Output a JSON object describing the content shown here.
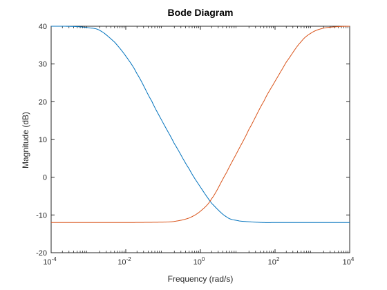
{
  "chart_data": {
    "type": "line",
    "title": "Bode Diagram",
    "xlabel": "Frequency (rad/s)",
    "ylabel": "Magnitude (dB)",
    "xscale": "log",
    "xlim": [
      0.0001,
      10000
    ],
    "ylim": [
      -20,
      40
    ],
    "grid": false,
    "box": true,
    "x_ticks": [
      {
        "base": "10",
        "exp": "-4"
      },
      {
        "base": "10",
        "exp": "-2"
      },
      {
        "base": "10",
        "exp": "0"
      },
      {
        "base": "10",
        "exp": "2"
      },
      {
        "base": "10",
        "exp": "4"
      }
    ],
    "y_ticks": [
      "-20",
      "-10",
      "0",
      "10",
      "20",
      "30",
      "40"
    ],
    "series": [
      {
        "color": "#0072BD",
        "x": [
          0.0001,
          0.0002,
          0.0005,
          0.001,
          0.002,
          0.005,
          0.01,
          0.02,
          0.05,
          0.1,
          0.2,
          0.5,
          1,
          2,
          5,
          10,
          20,
          50,
          100,
          1000,
          10000
        ],
        "y": [
          40.0,
          40.0,
          39.9,
          39.6,
          38.9,
          35.8,
          32.1,
          27.4,
          20.1,
          14.4,
          8.9,
          2.2,
          -2.6,
          -6.9,
          -10.5,
          -11.5,
          -11.8,
          -12.0,
          -12.0,
          -12.0,
          -12.0
        ]
      },
      {
        "color": "#D95319",
        "x": [
          0.0001,
          0.001,
          0.01,
          0.1,
          0.2,
          0.5,
          1,
          2,
          5,
          10,
          20,
          50,
          100,
          200,
          500,
          1000,
          2000,
          5000,
          10000
        ],
        "y": [
          -12.0,
          -12.0,
          -12.0,
          -11.9,
          -11.7,
          -10.8,
          -9.0,
          -5.7,
          1.2,
          6.9,
          12.7,
          20.1,
          25.4,
          30.5,
          35.9,
          38.4,
          39.5,
          39.9,
          40.0
        ]
      }
    ]
  }
}
